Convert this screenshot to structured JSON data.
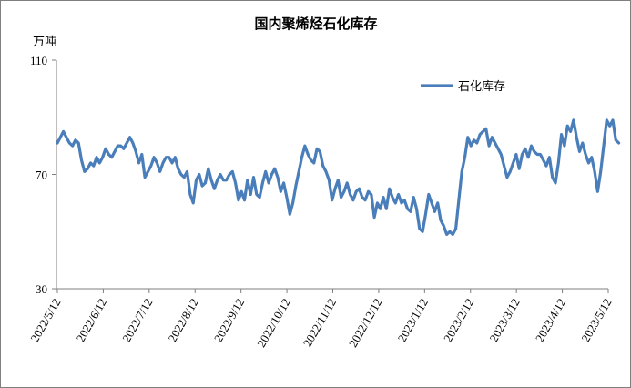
{
  "chart_data": {
    "type": "line",
    "title": "国内聚烯烃石化库存",
    "ylabel": "万吨",
    "ylim": [
      30,
      110
    ],
    "yticks": [
      30,
      70,
      110
    ],
    "grid": false,
    "legend_position": "top-right",
    "x_start": "2022-05-12",
    "x_end": "2023-05-12",
    "xtick_labels": [
      "2022/5/12",
      "2022/6/12",
      "2022/7/12",
      "2022/8/12",
      "2022/9/12",
      "2022/10/12",
      "2022/11/12",
      "2022/12/12",
      "2023/1/12",
      "2023/2/12",
      "2023/3/12",
      "2023/4/12",
      "2023/5/12"
    ],
    "colors": {
      "series": "#4a7ebb"
    },
    "series": [
      {
        "name": "石化库存",
        "points": [
          [
            "2022-05-12",
            81
          ],
          [
            "2022-05-14",
            83
          ],
          [
            "2022-05-16",
            85
          ],
          [
            "2022-05-18",
            83
          ],
          [
            "2022-05-20",
            81
          ],
          [
            "2022-05-22",
            80
          ],
          [
            "2022-05-24",
            82
          ],
          [
            "2022-05-26",
            81
          ],
          [
            "2022-05-28",
            75
          ],
          [
            "2022-05-30",
            71
          ],
          [
            "2022-06-01",
            72
          ],
          [
            "2022-06-03",
            74
          ],
          [
            "2022-06-05",
            73
          ],
          [
            "2022-06-07",
            76
          ],
          [
            "2022-06-09",
            74
          ],
          [
            "2022-06-11",
            76
          ],
          [
            "2022-06-13",
            79
          ],
          [
            "2022-06-15",
            77
          ],
          [
            "2022-06-17",
            76
          ],
          [
            "2022-06-19",
            78
          ],
          [
            "2022-06-21",
            80
          ],
          [
            "2022-06-23",
            80
          ],
          [
            "2022-06-25",
            79
          ],
          [
            "2022-06-27",
            81
          ],
          [
            "2022-06-29",
            83
          ],
          [
            "2022-07-01",
            81
          ],
          [
            "2022-07-03",
            78
          ],
          [
            "2022-07-05",
            74
          ],
          [
            "2022-07-07",
            77
          ],
          [
            "2022-07-09",
            69
          ],
          [
            "2022-07-11",
            71
          ],
          [
            "2022-07-13",
            73
          ],
          [
            "2022-07-15",
            76
          ],
          [
            "2022-07-17",
            74
          ],
          [
            "2022-07-19",
            71
          ],
          [
            "2022-07-21",
            74
          ],
          [
            "2022-07-23",
            76
          ],
          [
            "2022-07-25",
            76
          ],
          [
            "2022-07-27",
            74
          ],
          [
            "2022-07-29",
            76
          ],
          [
            "2022-07-31",
            72
          ],
          [
            "2022-08-02",
            70
          ],
          [
            "2022-08-04",
            69
          ],
          [
            "2022-08-06",
            71
          ],
          [
            "2022-08-08",
            63
          ],
          [
            "2022-08-10",
            60
          ],
          [
            "2022-08-12",
            68
          ],
          [
            "2022-08-14",
            70
          ],
          [
            "2022-08-16",
            66
          ],
          [
            "2022-08-18",
            67
          ],
          [
            "2022-08-20",
            72
          ],
          [
            "2022-08-22",
            68
          ],
          [
            "2022-08-24",
            65
          ],
          [
            "2022-08-26",
            68
          ],
          [
            "2022-08-28",
            70
          ],
          [
            "2022-08-30",
            68
          ],
          [
            "2022-09-01",
            68
          ],
          [
            "2022-09-03",
            70
          ],
          [
            "2022-09-05",
            71
          ],
          [
            "2022-09-07",
            67
          ],
          [
            "2022-09-09",
            61
          ],
          [
            "2022-09-11",
            64
          ],
          [
            "2022-09-13",
            61
          ],
          [
            "2022-09-15",
            68
          ],
          [
            "2022-09-17",
            63
          ],
          [
            "2022-09-19",
            69
          ],
          [
            "2022-09-21",
            63
          ],
          [
            "2022-09-23",
            62
          ],
          [
            "2022-09-25",
            67
          ],
          [
            "2022-09-27",
            71
          ],
          [
            "2022-09-29",
            67
          ],
          [
            "2022-10-01",
            70
          ],
          [
            "2022-10-03",
            72
          ],
          [
            "2022-10-05",
            69
          ],
          [
            "2022-10-07",
            64
          ],
          [
            "2022-10-09",
            67
          ],
          [
            "2022-10-11",
            62
          ],
          [
            "2022-10-13",
            56
          ],
          [
            "2022-10-15",
            60
          ],
          [
            "2022-10-17",
            66
          ],
          [
            "2022-10-19",
            71
          ],
          [
            "2022-10-21",
            76
          ],
          [
            "2022-10-23",
            80
          ],
          [
            "2022-10-25",
            77
          ],
          [
            "2022-10-27",
            75
          ],
          [
            "2022-10-29",
            74
          ],
          [
            "2022-10-31",
            79
          ],
          [
            "2022-11-02",
            78
          ],
          [
            "2022-11-04",
            73
          ],
          [
            "2022-11-06",
            71
          ],
          [
            "2022-11-08",
            68
          ],
          [
            "2022-11-10",
            61
          ],
          [
            "2022-11-12",
            65
          ],
          [
            "2022-11-14",
            68
          ],
          [
            "2022-11-16",
            62
          ],
          [
            "2022-11-18",
            64
          ],
          [
            "2022-11-20",
            67
          ],
          [
            "2022-11-22",
            63
          ],
          [
            "2022-11-24",
            61
          ],
          [
            "2022-11-26",
            64
          ],
          [
            "2022-11-28",
            65
          ],
          [
            "2022-11-30",
            62
          ],
          [
            "2022-12-02",
            61
          ],
          [
            "2022-12-04",
            64
          ],
          [
            "2022-12-06",
            63
          ],
          [
            "2022-12-08",
            55
          ],
          [
            "2022-12-10",
            60
          ],
          [
            "2022-12-12",
            58
          ],
          [
            "2022-12-14",
            62
          ],
          [
            "2022-12-16",
            58
          ],
          [
            "2022-12-18",
            65
          ],
          [
            "2022-12-20",
            62
          ],
          [
            "2022-12-22",
            60
          ],
          [
            "2022-12-24",
            63
          ],
          [
            "2022-12-26",
            60
          ],
          [
            "2022-12-28",
            61
          ],
          [
            "2022-12-30",
            58
          ],
          [
            "2023-01-01",
            57
          ],
          [
            "2023-01-03",
            62
          ],
          [
            "2023-01-05",
            58
          ],
          [
            "2023-01-07",
            51
          ],
          [
            "2023-01-09",
            50
          ],
          [
            "2023-01-11",
            56
          ],
          [
            "2023-01-13",
            63
          ],
          [
            "2023-01-15",
            60
          ],
          [
            "2023-01-17",
            57
          ],
          [
            "2023-01-19",
            60
          ],
          [
            "2023-01-21",
            54
          ],
          [
            "2023-01-23",
            52
          ],
          [
            "2023-01-25",
            49
          ],
          [
            "2023-01-27",
            50
          ],
          [
            "2023-01-29",
            49
          ],
          [
            "2023-01-31",
            51
          ],
          [
            "2023-02-02",
            61
          ],
          [
            "2023-02-04",
            71
          ],
          [
            "2023-02-06",
            76
          ],
          [
            "2023-02-08",
            83
          ],
          [
            "2023-02-10",
            80
          ],
          [
            "2023-02-12",
            82
          ],
          [
            "2023-02-14",
            81
          ],
          [
            "2023-02-16",
            84
          ],
          [
            "2023-02-18",
            85
          ],
          [
            "2023-02-20",
            86
          ],
          [
            "2023-02-22",
            80
          ],
          [
            "2023-02-24",
            83
          ],
          [
            "2023-02-26",
            81
          ],
          [
            "2023-02-28",
            79
          ],
          [
            "2023-03-02",
            77
          ],
          [
            "2023-03-04",
            73
          ],
          [
            "2023-03-06",
            69
          ],
          [
            "2023-03-08",
            71
          ],
          [
            "2023-03-10",
            74
          ],
          [
            "2023-03-12",
            77
          ],
          [
            "2023-03-14",
            72
          ],
          [
            "2023-03-16",
            77
          ],
          [
            "2023-03-18",
            79
          ],
          [
            "2023-03-20",
            76
          ],
          [
            "2023-03-22",
            80
          ],
          [
            "2023-03-24",
            78
          ],
          [
            "2023-03-26",
            77
          ],
          [
            "2023-03-28",
            77
          ],
          [
            "2023-03-30",
            75
          ],
          [
            "2023-04-01",
            73
          ],
          [
            "2023-04-03",
            76
          ],
          [
            "2023-04-05",
            69
          ],
          [
            "2023-04-07",
            67
          ],
          [
            "2023-04-09",
            74
          ],
          [
            "2023-04-11",
            84
          ],
          [
            "2023-04-13",
            80
          ],
          [
            "2023-04-15",
            87
          ],
          [
            "2023-04-17",
            85
          ],
          [
            "2023-04-19",
            89
          ],
          [
            "2023-04-21",
            83
          ],
          [
            "2023-04-23",
            78
          ],
          [
            "2023-04-25",
            81
          ],
          [
            "2023-04-27",
            77
          ],
          [
            "2023-04-29",
            74
          ],
          [
            "2023-05-01",
            76
          ],
          [
            "2023-05-03",
            71
          ],
          [
            "2023-05-05",
            64
          ],
          [
            "2023-05-07",
            71
          ],
          [
            "2023-05-09",
            80
          ],
          [
            "2023-05-11",
            89
          ],
          [
            "2023-05-13",
            87
          ],
          [
            "2023-05-15",
            89
          ],
          [
            "2023-05-17",
            82
          ],
          [
            "2023-05-19",
            81
          ]
        ]
      }
    ]
  }
}
